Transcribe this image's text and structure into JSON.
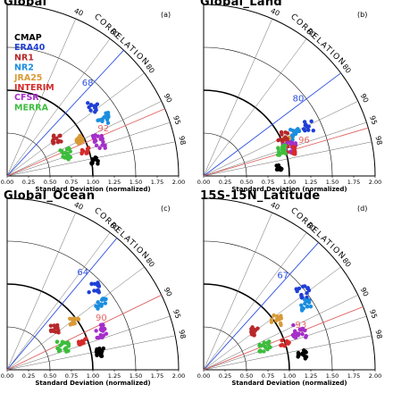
{
  "colors": {
    "CMAP": "#000000",
    "ERA40": "#1f3fd6",
    "NR1": "#b8282a",
    "NR2": "#1a8ee0",
    "JRA25": "#d99a36",
    "INTERIM": "#d62a2a",
    "CFSR": "#a52ec9",
    "MERRA": "#3dbd3d",
    "blue_ref": "#2b4fe0",
    "red_ref": "#e06464"
  },
  "axes": {
    "x_ticks": [
      "0.00",
      "0.25",
      "0.50",
      "0.75",
      "1.00",
      "1.25",
      "1.50",
      "1.75",
      "2.00"
    ],
    "xlabel": "Standard Deviation (normalized)",
    "correlation_label": "CORRELATION",
    "correlation_ticks": [
      "40",
      "60",
      "80",
      "90",
      "95",
      "98"
    ]
  },
  "legend": [
    "CMAP",
    "ERA40",
    "NR1",
    "NR2",
    "JRA25",
    "INTERIM",
    "CFSR",
    "MERRA"
  ],
  "chart_data": [
    {
      "type": "scatter",
      "title": "Global",
      "panel_letter": "(a)",
      "xlabel": "Standard Deviation (normalized)",
      "xlim": [
        0,
        2
      ],
      "ref_correlations": {
        "blue": "68",
        "red": "92"
      },
      "clusters": [
        {
          "name": "ERA40",
          "x": 1.0,
          "y": 0.8,
          "n": 12,
          "spread": 0.06
        },
        {
          "name": "NR2",
          "x": 1.12,
          "y": 0.68,
          "n": 14,
          "spread": 0.07
        },
        {
          "name": "JRA25",
          "x": 0.83,
          "y": 0.42,
          "n": 14,
          "spread": 0.06
        },
        {
          "name": "NR1",
          "x": 0.58,
          "y": 0.43,
          "n": 14,
          "spread": 0.05
        },
        {
          "name": "CFSR",
          "x": 1.08,
          "y": 0.4,
          "n": 18,
          "spread": 0.08
        },
        {
          "name": "INTERIM",
          "x": 0.9,
          "y": 0.28,
          "n": 12,
          "spread": 0.05
        },
        {
          "name": "MERRA",
          "x": 0.68,
          "y": 0.26,
          "n": 18,
          "spread": 0.07
        },
        {
          "name": "CMAP",
          "x": 1.02,
          "y": 0.18,
          "n": 12,
          "spread": 0.04
        }
      ]
    },
    {
      "type": "scatter",
      "title": "Global_Land",
      "panel_letter": "(b)",
      "xlabel": "Standard Deviation (normalized)",
      "xlim": [
        0,
        2
      ],
      "ref_correlations": {
        "blue": "80",
        "red": "96"
      },
      "clusters": [
        {
          "name": "ERA40",
          "x": 1.22,
          "y": 0.58,
          "n": 10,
          "spread": 0.06
        },
        {
          "name": "NR2",
          "x": 1.05,
          "y": 0.48,
          "n": 14,
          "spread": 0.07
        },
        {
          "name": "JRA25",
          "x": 0.95,
          "y": 0.4,
          "n": 12,
          "spread": 0.05
        },
        {
          "name": "NR1",
          "x": 0.93,
          "y": 0.46,
          "n": 12,
          "spread": 0.06
        },
        {
          "name": "CFSR",
          "x": 1.0,
          "y": 0.35,
          "n": 18,
          "spread": 0.08
        },
        {
          "name": "INTERIM",
          "x": 1.02,
          "y": 0.3,
          "n": 12,
          "spread": 0.05
        },
        {
          "name": "MERRA",
          "x": 0.92,
          "y": 0.3,
          "n": 16,
          "spread": 0.06
        },
        {
          "name": "CMAP",
          "x": 0.88,
          "y": 0.1,
          "n": 12,
          "spread": 0.03
        }
      ]
    },
    {
      "type": "scatter",
      "title": "Global_Ocean",
      "panel_letter": "(c)",
      "xlabel": "Standard Deviation (normalized)",
      "xlim": [
        0,
        2
      ],
      "ref_correlations": {
        "blue": "64",
        "red": "90"
      },
      "clusters": [
        {
          "name": "ERA40",
          "x": 1.02,
          "y": 0.95,
          "n": 14,
          "spread": 0.07
        },
        {
          "name": "NR2",
          "x": 1.1,
          "y": 0.78,
          "n": 14,
          "spread": 0.07
        },
        {
          "name": "JRA25",
          "x": 0.78,
          "y": 0.58,
          "n": 14,
          "spread": 0.06
        },
        {
          "name": "NR1",
          "x": 0.55,
          "y": 0.48,
          "n": 14,
          "spread": 0.05
        },
        {
          "name": "CFSR",
          "x": 1.08,
          "y": 0.45,
          "n": 18,
          "spread": 0.08
        },
        {
          "name": "INTERIM",
          "x": 0.88,
          "y": 0.32,
          "n": 12,
          "spread": 0.05
        },
        {
          "name": "MERRA",
          "x": 0.65,
          "y": 0.28,
          "n": 18,
          "spread": 0.07
        },
        {
          "name": "CMAP",
          "x": 1.08,
          "y": 0.2,
          "n": 14,
          "spread": 0.05
        }
      ]
    },
    {
      "type": "scatter",
      "title": "15S-15N_Latitude",
      "panel_letter": "(d)",
      "xlabel": "Standard Deviation (normalized)",
      "xlim": [
        0,
        2
      ],
      "ref_correlations": {
        "blue": "67",
        "red": "93"
      },
      "clusters": [
        {
          "name": "ERA40",
          "x": 1.15,
          "y": 0.92,
          "n": 14,
          "spread": 0.08
        },
        {
          "name": "NR2",
          "x": 1.2,
          "y": 0.75,
          "n": 14,
          "spread": 0.07
        },
        {
          "name": "JRA25",
          "x": 0.85,
          "y": 0.58,
          "n": 14,
          "spread": 0.06
        },
        {
          "name": "NR1",
          "x": 0.6,
          "y": 0.45,
          "n": 14,
          "spread": 0.05
        },
        {
          "name": "CFSR",
          "x": 1.12,
          "y": 0.45,
          "n": 18,
          "spread": 0.08
        },
        {
          "name": "INTERIM",
          "x": 0.95,
          "y": 0.3,
          "n": 12,
          "spread": 0.05
        },
        {
          "name": "MERRA",
          "x": 0.72,
          "y": 0.28,
          "n": 18,
          "spread": 0.07
        },
        {
          "name": "CMAP",
          "x": 1.15,
          "y": 0.18,
          "n": 14,
          "spread": 0.05
        }
      ]
    }
  ]
}
